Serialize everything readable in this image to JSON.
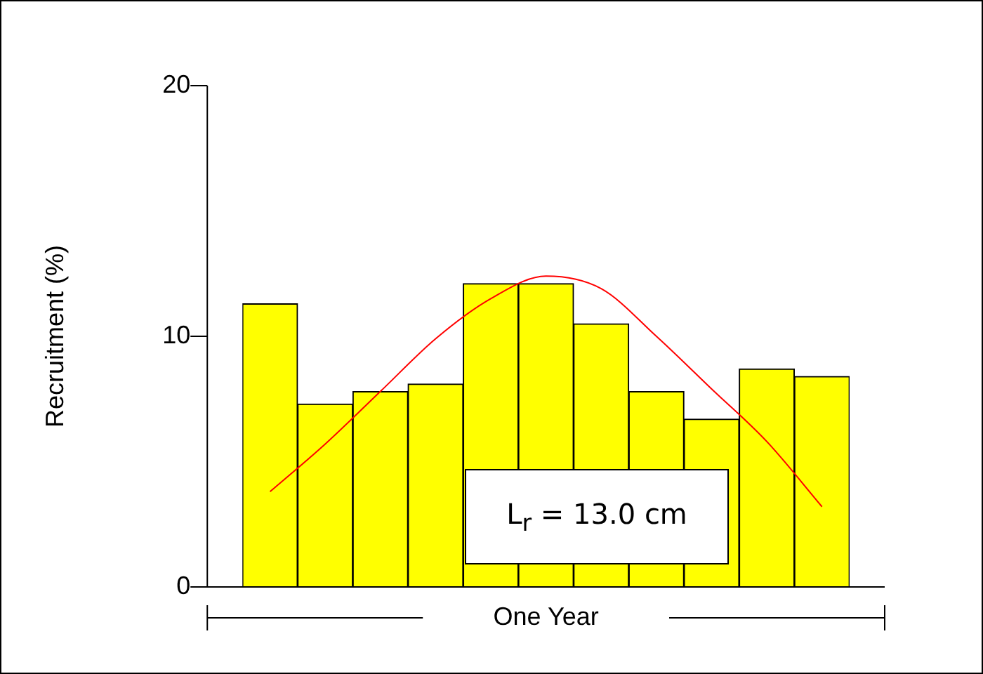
{
  "chart_data": {
    "type": "bar",
    "ylabel": "Recruitment (%)",
    "xlabel": "One Year",
    "categories": [
      null,
      null,
      null,
      null,
      null,
      null,
      null,
      null,
      null,
      null,
      null
    ],
    "series": [
      {
        "color": "#ffff00",
        "values": [
          11.3,
          7.3,
          7.8,
          8.1,
          12.1,
          12.1,
          10.5,
          7.8,
          6.7,
          8.7,
          8.4
        ]
      },
      {
        "type": "line",
        "color": "#ff0000",
        "values": [
          3.8,
          5.7,
          7.8,
          9.9,
          11.5,
          12.4,
          11.9,
          10.0,
          7.9,
          5.8,
          3.2
        ]
      }
    ],
    "ylim": [
      0,
      20
    ],
    "yticks": [
      0,
      10,
      20
    ],
    "grid": false,
    "legend": false,
    "tick_labels": "y",
    "marker": "none",
    "line_style": "solid",
    "annotations": [
      "L$_{r}$ = 13.0 cm"
    ]
  }
}
